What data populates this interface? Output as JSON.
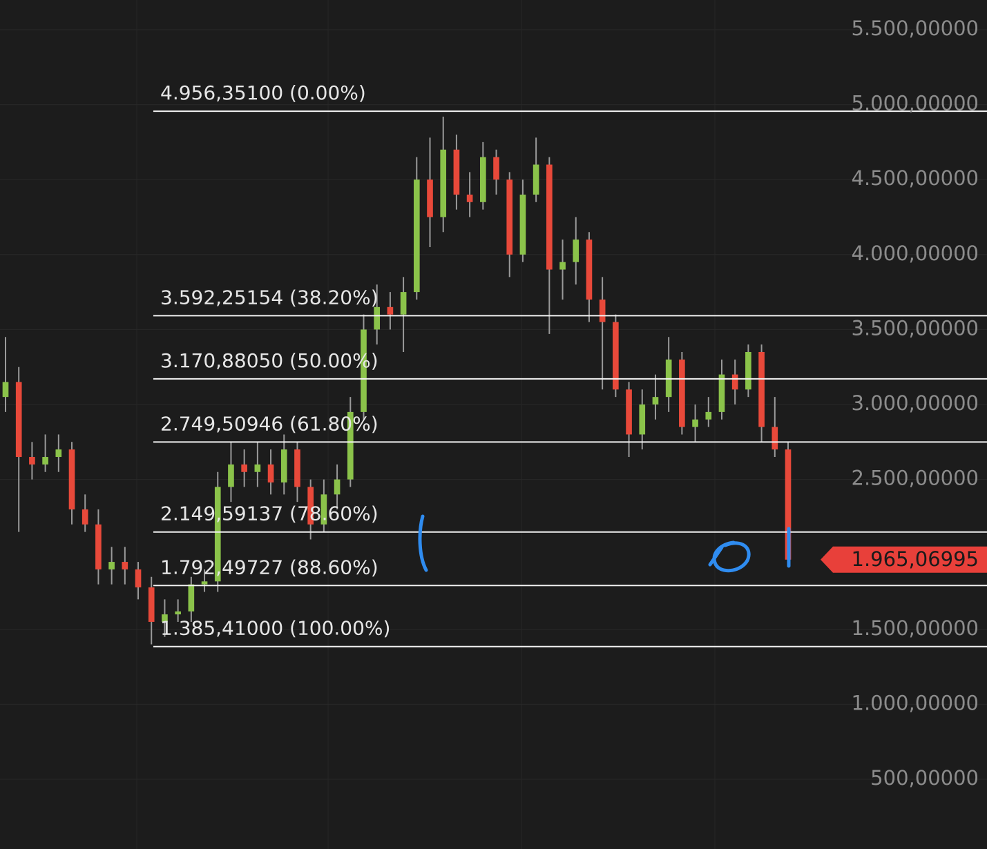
{
  "chart_data": {
    "type": "candlestick",
    "ylim": [
      35,
      5698
    ],
    "yticks": [
      {
        "value": 500,
        "label": "500,00000"
      },
      {
        "value": 1000,
        "label": "1.000,00000"
      },
      {
        "value": 1500,
        "label": "1.500,00000"
      },
      {
        "value": 2500,
        "label": "2.500,00000"
      },
      {
        "value": 3000,
        "label": "3.000,00000"
      },
      {
        "value": 3500,
        "label": "3.500,00000"
      },
      {
        "value": 4000,
        "label": "4.000,00000"
      },
      {
        "value": 4500,
        "label": "4.500,00000"
      },
      {
        "value": 5000,
        "label": "5.000,00000"
      },
      {
        "value": 5500,
        "label": "5.500,00000"
      }
    ],
    "grid": true,
    "up_color": "#8bc34a",
    "down_color": "#e8493a",
    "wick_color": "#9a9a9a",
    "open": [
      3050,
      3150,
      2650,
      2600,
      2650,
      2700,
      2300,
      2200,
      1900,
      1950,
      1900,
      1780,
      1550,
      1600,
      1620,
      1800,
      1820,
      2450,
      2600,
      2550,
      2600,
      2480,
      2700,
      2450,
      2200,
      2400,
      2500,
      2950,
      3500,
      3650,
      3600,
      3750,
      4500,
      4250,
      4700,
      4400,
      4350,
      4650,
      4500,
      4000,
      4400,
      4600,
      3900,
      3950,
      4100,
      3700,
      3550,
      3100,
      2800,
      3000,
      3050,
      3300,
      2850,
      2900,
      2950,
      3200,
      3100,
      3350,
      2850,
      2700
    ],
    "high": [
      3450,
      3250,
      2750,
      2800,
      2800,
      2750,
      2400,
      2300,
      2050,
      2050,
      1950,
      1850,
      1700,
      1700,
      1850,
      1900,
      2550,
      2750,
      2700,
      2750,
      2700,
      2800,
      2750,
      2500,
      2500,
      2600,
      3050,
      3600,
      3800,
      3750,
      3850,
      4650,
      4780,
      4920,
      4800,
      4550,
      4750,
      4700,
      4550,
      4500,
      4780,
      4650,
      4100,
      4250,
      4150,
      3850,
      3600,
      3150,
      3100,
      3200,
      3450,
      3350,
      3000,
      3050,
      3300,
      3300,
      3400,
      3400,
      3050,
      2750
    ],
    "low": [
      2950,
      2150,
      2500,
      2550,
      2550,
      2200,
      2150,
      1800,
      1800,
      1800,
      1700,
      1400,
      1450,
      1550,
      1550,
      1750,
      1750,
      2350,
      2450,
      2450,
      2400,
      2400,
      2350,
      2100,
      2150,
      2300,
      2450,
      2900,
      3400,
      3500,
      3350,
      3700,
      4050,
      4150,
      4300,
      4250,
      4300,
      4400,
      3850,
      3950,
      4350,
      3470,
      3700,
      3800,
      3550,
      3100,
      3050,
      2650,
      2700,
      2900,
      2950,
      2800,
      2750,
      2850,
      2900,
      3000,
      3050,
      2750,
      2650,
      1930
    ],
    "close": [
      3150,
      2650,
      2600,
      2650,
      2700,
      2300,
      2200,
      1900,
      1950,
      1900,
      1780,
      1550,
      1600,
      1620,
      1800,
      1820,
      2450,
      2600,
      2550,
      2600,
      2480,
      2700,
      2450,
      2200,
      2400,
      2500,
      2950,
      3500,
      3650,
      3600,
      3750,
      4500,
      4250,
      4700,
      4400,
      4350,
      4650,
      4500,
      4000,
      4400,
      4600,
      3900,
      3950,
      4100,
      3700,
      3550,
      3100,
      2800,
      3000,
      3050,
      3300,
      2850,
      2900,
      2950,
      3200,
      3100,
      3350,
      2850,
      2700,
      1965.06995
    ],
    "fib_color": "#f2f2f2",
    "fib_levels": [
      {
        "value": 4956.351,
        "label": "4.956,35100 (0.00%)"
      },
      {
        "value": 3592.25154,
        "label": "3.592,25154 (38.20%)"
      },
      {
        "value": 3170.8805,
        "label": "3.170,88050 (50.00%)"
      },
      {
        "value": 2749.50946,
        "label": "2.749,50946 (61.80%)"
      },
      {
        "value": 2149.59137,
        "label": "2.149,59137 (78.60%)"
      },
      {
        "value": 1792.49727,
        "label": "1.792,49727 (88.60%)"
      },
      {
        "value": 1385.41,
        "label": "1.385,41000 (100.00%)"
      }
    ],
    "last_price": {
      "value": 1965.06995,
      "label": "1.965,06995",
      "color": "#e8403a"
    }
  }
}
